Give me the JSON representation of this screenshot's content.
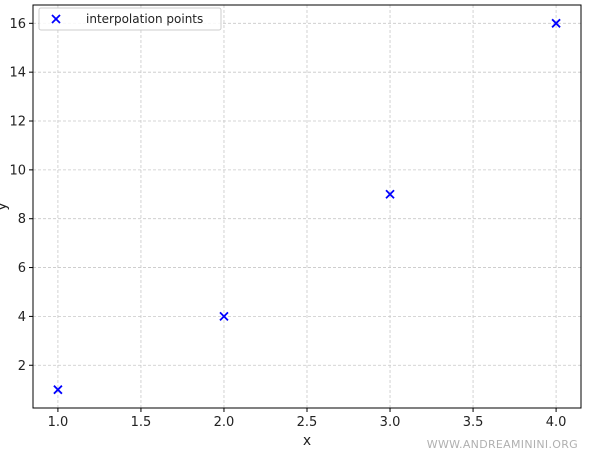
{
  "chart_data": {
    "type": "scatter",
    "series": [
      {
        "name": "interpolation points",
        "marker": "x",
        "color": "#0000ff",
        "x": [
          1.0,
          2.0,
          3.0,
          4.0
        ],
        "y": [
          1,
          4,
          9,
          16
        ]
      }
    ],
    "xlabel": "x",
    "ylabel": "y",
    "xlim": [
      0.85,
      4.15
    ],
    "ylim": [
      0.25,
      16.75
    ],
    "xticks": [
      1.0,
      1.5,
      2.0,
      2.5,
      3.0,
      3.5,
      4.0
    ],
    "xtick_labels": [
      "1.0",
      "1.5",
      "2.0",
      "2.5",
      "3.0",
      "3.5",
      "4.0"
    ],
    "yticks": [
      2,
      4,
      6,
      8,
      10,
      12,
      14,
      16
    ],
    "ytick_labels": [
      "2",
      "4",
      "6",
      "8",
      "10",
      "12",
      "14",
      "16"
    ],
    "grid": true,
    "legend_position": "top-left"
  },
  "watermark": "WWW.ANDREAMININI.ORG"
}
